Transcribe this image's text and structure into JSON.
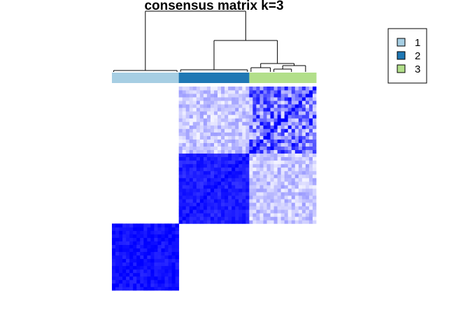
{
  "chart_data": {
    "type": "heatmap",
    "title": "consensus matrix k=3",
    "legend": {
      "position": "top-right",
      "entries": [
        {
          "label": "1",
          "color": "#A6CEE3"
        },
        {
          "label": "2",
          "color": "#1F78B4"
        },
        {
          "label": "3",
          "color": "#B2DF8A"
        }
      ]
    },
    "colors": {
      "low": "#FFFFFF",
      "high": "#0000FF",
      "dendrogram": "#000000"
    },
    "cluster_order": [
      "1",
      "2",
      "3"
    ],
    "cluster_sizes": [
      19,
      20,
      19
    ],
    "value_range": [
      0,
      1
    ],
    "block_consensus": [
      [
        0.93,
        0.0,
        0.0
      ],
      [
        0.0,
        0.88,
        0.22
      ],
      [
        0.0,
        0.22,
        0.55
      ]
    ],
    "dendrogram_visible": true,
    "axis_labels_visible": false
  }
}
